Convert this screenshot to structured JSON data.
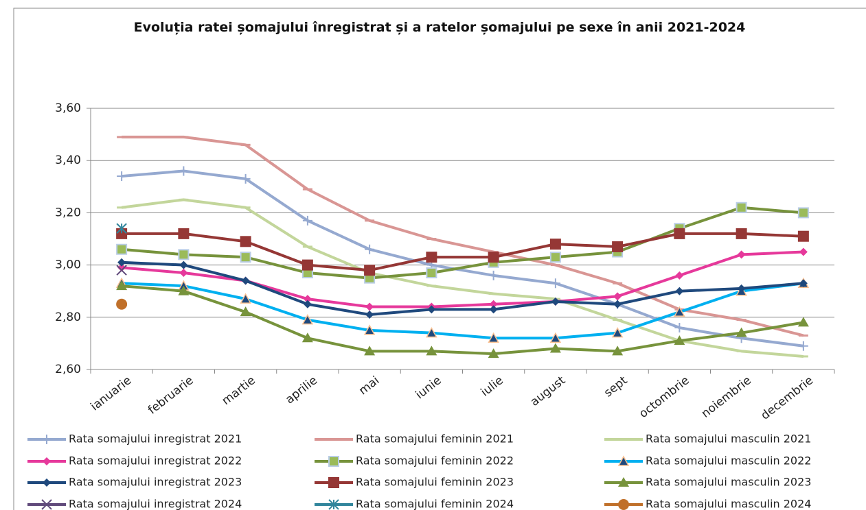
{
  "chart_data": {
    "type": "line",
    "title": "Evoluția ratei șomajului înregistrat și a ratelor șomajului pe sexe în anii 2021-2024",
    "categories": [
      "ianuarie",
      "februarie",
      "martie",
      "aprilie",
      "mai",
      "iunie",
      "iulie",
      "august",
      "sept",
      "octombrie",
      "noiembrie",
      "decembrie"
    ],
    "ylim": [
      2.6,
      3.6
    ],
    "yticks": [
      {
        "value": 2.6,
        "label": "2,60"
      },
      {
        "value": 2.8,
        "label": "2,80"
      },
      {
        "value": 3.0,
        "label": "3,00"
      },
      {
        "value": 3.2,
        "label": "3,20"
      },
      {
        "value": 3.4,
        "label": "3,40"
      },
      {
        "value": 3.6,
        "label": "3,60"
      }
    ],
    "grid": true,
    "legend": "bottom",
    "series": [
      {
        "name": "Rata somajului inregistrat 2021",
        "color": "#95a9d0",
        "marker": "plus",
        "values": [
          3.34,
          3.36,
          3.33,
          3.17,
          3.06,
          3.0,
          2.96,
          2.93,
          2.85,
          2.76,
          2.72,
          2.69
        ]
      },
      {
        "name": "Rata somajului feminin 2021",
        "color": "#d99694",
        "marker": "dash",
        "values": [
          3.49,
          3.49,
          3.46,
          3.29,
          3.17,
          3.1,
          3.05,
          3.0,
          2.93,
          2.83,
          2.79,
          2.73
        ]
      },
      {
        "name": "Rata somajului masculin 2021",
        "color": "#c3d69b",
        "marker": "dash",
        "values": [
          3.22,
          3.25,
          3.22,
          3.07,
          2.97,
          2.92,
          2.89,
          2.87,
          2.79,
          2.71,
          2.67,
          2.65
        ]
      },
      {
        "name": "Rata somajului inregistrat 2022",
        "color": "#e6399b",
        "marker": "diamond",
        "values": [
          2.99,
          2.97,
          2.94,
          2.87,
          2.84,
          2.84,
          2.85,
          2.86,
          2.88,
          2.96,
          3.04,
          3.05
        ]
      },
      {
        "name": "Rata somajului feminin 2022",
        "color": "#77933c",
        "marker": "square-light",
        "values": [
          3.06,
          3.04,
          3.03,
          2.97,
          2.95,
          2.97,
          3.01,
          3.03,
          3.05,
          3.14,
          3.22,
          3.2
        ]
      },
      {
        "name": "Rata somajului masculin 2022",
        "color": "#00b0f0",
        "marker": "triangle-light",
        "values": [
          2.93,
          2.92,
          2.87,
          2.79,
          2.75,
          2.74,
          2.72,
          2.72,
          2.74,
          2.82,
          2.9,
          2.93
        ]
      },
      {
        "name": "Rata somajului inregistrat 2023",
        "color": "#1f497d",
        "marker": "diamond",
        "values": [
          3.01,
          3.0,
          2.94,
          2.85,
          2.81,
          2.83,
          2.83,
          2.86,
          2.85,
          2.9,
          2.91,
          2.93
        ]
      },
      {
        "name": "Rata somajului feminin 2023",
        "color": "#953735",
        "marker": "square",
        "values": [
          3.12,
          3.12,
          3.09,
          3.0,
          2.98,
          3.03,
          3.03,
          3.08,
          3.07,
          3.12,
          3.12,
          3.11
        ]
      },
      {
        "name": "Rata somajului masculin 2023",
        "color": "#77933c",
        "marker": "triangle",
        "values": [
          2.92,
          2.9,
          2.82,
          2.72,
          2.67,
          2.67,
          2.66,
          2.68,
          2.67,
          2.71,
          2.74,
          2.78
        ]
      },
      {
        "name": "Rata somajului inregistrat 2024",
        "color": "#604a7b",
        "marker": "x",
        "values": [
          2.98,
          null,
          null,
          null,
          null,
          null,
          null,
          null,
          null,
          null,
          null,
          null
        ]
      },
      {
        "name": "Rata somajului feminin 2024",
        "color": "#31859c",
        "marker": "star",
        "values": [
          3.14,
          null,
          null,
          null,
          null,
          null,
          null,
          null,
          null,
          null,
          null,
          null
        ]
      },
      {
        "name": "Rata somajului masculin 2024",
        "color": "#c0702a",
        "marker": "circle",
        "values": [
          2.85,
          null,
          null,
          null,
          null,
          null,
          null,
          null,
          null,
          null,
          null,
          null
        ]
      }
    ]
  }
}
